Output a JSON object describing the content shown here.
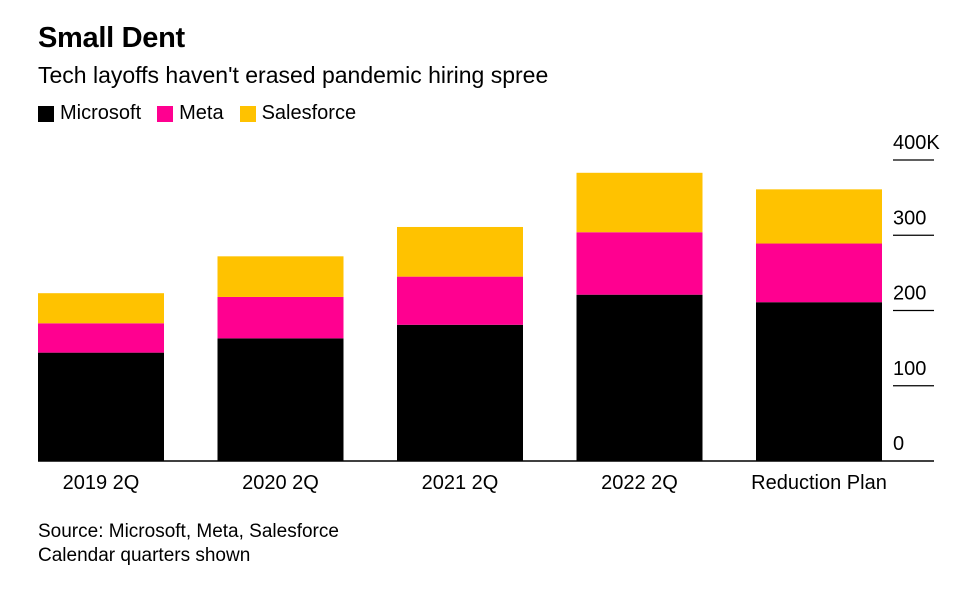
{
  "title": "Small Dent",
  "subtitle": "Tech layoffs haven't erased pandemic hiring spree",
  "legend": [
    {
      "label": "Microsoft",
      "color": "#000000"
    },
    {
      "label": "Meta",
      "color": "#ff0090"
    },
    {
      "label": "Salesforce",
      "color": "#ffc200"
    }
  ],
  "footer": {
    "source": "Source: Microsoft, Meta, Salesforce",
    "note": "Calendar quarters shown"
  },
  "chart_data": {
    "type": "bar",
    "stacked": true,
    "categories": [
      "2019 2Q",
      "2020 2Q",
      "2021 2Q",
      "2022 2Q",
      "Reduction Plan"
    ],
    "series": [
      {
        "name": "Microsoft",
        "color": "#000000",
        "values": [
          144,
          163,
          181,
          221,
          211
        ]
      },
      {
        "name": "Meta",
        "color": "#ff0090",
        "values": [
          39,
          55,
          64,
          83,
          78
        ]
      },
      {
        "name": "Salesforce",
        "color": "#ffc200",
        "values": [
          40,
          54,
          66,
          79,
          72
        ]
      }
    ],
    "y_ticks": [
      "0",
      "100",
      "200",
      "300",
      "400K"
    ],
    "ylim": [
      0,
      400
    ],
    "y_axis_position": "right",
    "grid": false
  }
}
